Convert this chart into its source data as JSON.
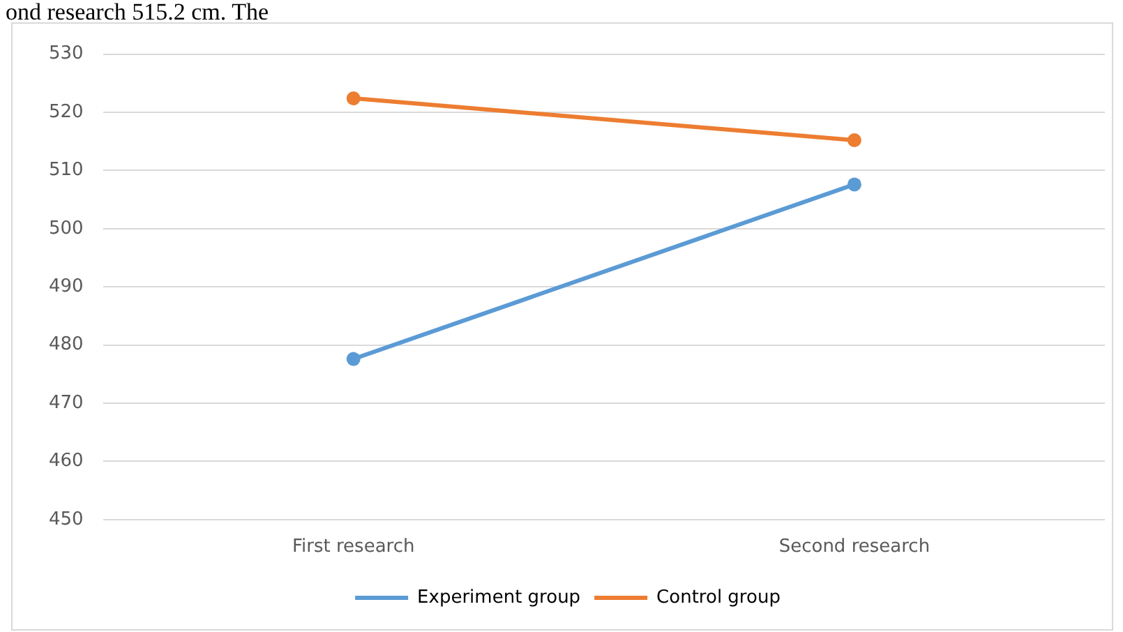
{
  "chart_data": {
    "type": "line",
    "annotations": [
      "ond research 515.2 cm. The"
    ],
    "categories": [
      "First research",
      "Second research"
    ],
    "series": [
      {
        "name": "Experiment group",
        "color": "#5b9bd5",
        "values": [
          477.6,
          507.6
        ]
      },
      {
        "name": "Control group",
        "color": "#ed7d31",
        "values": [
          522.4,
          515.2
        ]
      }
    ],
    "ylim": [
      450,
      530
    ],
    "yticks": [
      450,
      460,
      470,
      480,
      490,
      500,
      510,
      520,
      530
    ],
    "grid": "y",
    "legend": "bottom",
    "marker": "circle",
    "line_style": "solid"
  }
}
